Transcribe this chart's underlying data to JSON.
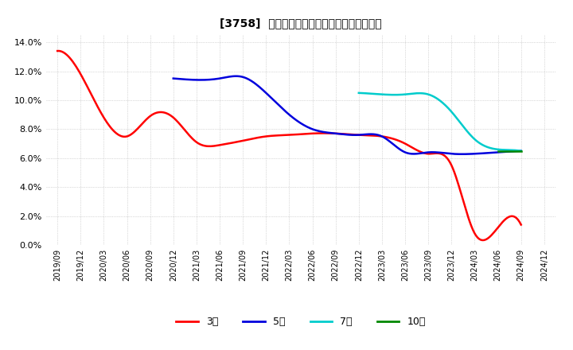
{
  "title": "[3758]  当期素利益マージンの標準偏差の推移",
  "ylim": [
    0.0,
    0.145
  ],
  "yticks": [
    0.0,
    0.02,
    0.04,
    0.06,
    0.08,
    0.1,
    0.12,
    0.14
  ],
  "background_color": "#ffffff",
  "grid_color": "#999999",
  "series": {
    "3年": {
      "color": "#ff0000",
      "data": [
        [
          "2019/09",
          0.134
        ],
        [
          "2019/12",
          0.118
        ],
        [
          "2020/03",
          0.088
        ],
        [
          "2020/06",
          0.075
        ],
        [
          "2020/09",
          0.089
        ],
        [
          "2020/12",
          0.088
        ],
        [
          "2021/03",
          0.071
        ],
        [
          "2021/06",
          0.069
        ],
        [
          "2021/09",
          0.072
        ],
        [
          "2021/12",
          0.075
        ],
        [
          "2022/03",
          0.076
        ],
        [
          "2022/06",
          0.077
        ],
        [
          "2022/09",
          0.077
        ],
        [
          "2022/12",
          0.076
        ],
        [
          "2023/03",
          0.075
        ],
        [
          "2023/06",
          0.07
        ],
        [
          "2023/09",
          0.063
        ],
        [
          "2023/12",
          0.055
        ],
        [
          "2024/03",
          0.008
        ],
        [
          "2024/06",
          0.012
        ],
        [
          "2024/09",
          0.014
        ]
      ]
    },
    "5年": {
      "color": "#0000dd",
      "data": [
        [
          "2020/12",
          0.115
        ],
        [
          "2021/03",
          0.114
        ],
        [
          "2021/06",
          0.115
        ],
        [
          "2021/09",
          0.116
        ],
        [
          "2021/12",
          0.105
        ],
        [
          "2022/03",
          0.09
        ],
        [
          "2022/06",
          0.08
        ],
        [
          "2022/09",
          0.077
        ],
        [
          "2022/12",
          0.076
        ],
        [
          "2023/03",
          0.075
        ],
        [
          "2023/06",
          0.064
        ],
        [
          "2023/09",
          0.064
        ],
        [
          "2023/12",
          0.063
        ],
        [
          "2024/03",
          0.063
        ],
        [
          "2024/06",
          0.064
        ],
        [
          "2024/09",
          0.065
        ]
      ]
    },
    "7年": {
      "color": "#00cccc",
      "data": [
        [
          "2022/12",
          0.105
        ],
        [
          "2023/03",
          0.104
        ],
        [
          "2023/06",
          0.104
        ],
        [
          "2023/09",
          0.104
        ],
        [
          "2023/12",
          0.092
        ],
        [
          "2024/03",
          0.073
        ],
        [
          "2024/06",
          0.066
        ],
        [
          "2024/09",
          0.065
        ]
      ]
    },
    "10年": {
      "color": "#008800",
      "data": [
        [
          "2024/06",
          0.065
        ],
        [
          "2024/09",
          0.065
        ]
      ]
    }
  },
  "legend_labels": [
    "3年",
    "5年",
    "7年",
    "10年"
  ],
  "legend_colors": [
    "#ff0000",
    "#0000dd",
    "#00cccc",
    "#008800"
  ],
  "x_tick_labels": [
    "2019/09",
    "2019/12",
    "2020/03",
    "2020/06",
    "2020/09",
    "2020/12",
    "2021/03",
    "2021/06",
    "2021/09",
    "2021/12",
    "2022/03",
    "2022/06",
    "2022/09",
    "2022/12",
    "2023/03",
    "2023/06",
    "2023/09",
    "2023/12",
    "2024/03",
    "2024/06",
    "2024/09",
    "2024/12"
  ]
}
